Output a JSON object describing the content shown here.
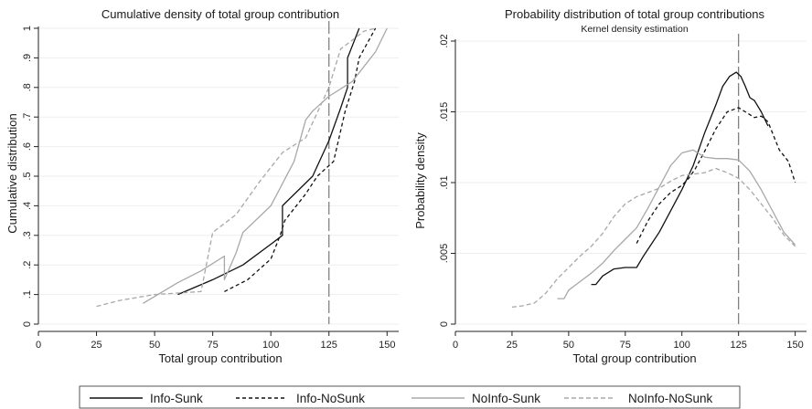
{
  "chart_data": [
    {
      "type": "line",
      "title": "Cumulative density of total group contribution",
      "xlabel": "Total group contribution",
      "ylabel": "Cumulative distribution",
      "xlim": [
        0,
        155
      ],
      "ylim": [
        0,
        1
      ],
      "xticks": [
        "0",
        "25",
        "50",
        "75",
        "100",
        "125",
        "150"
      ],
      "yticks": [
        "0",
        ".1",
        ".2",
        ".3",
        ".4",
        ".5",
        ".6",
        ".7",
        ".8",
        ".9",
        "1"
      ],
      "grid": true,
      "reference_line_x": 125,
      "series": [
        {
          "name": "Info-Sunk",
          "x": [
            60,
            75,
            88,
            100,
            105,
            105,
            118,
            125,
            130,
            133,
            133,
            138
          ],
          "y": [
            0.1,
            0.15,
            0.2,
            0.27,
            0.3,
            0.4,
            0.5,
            0.62,
            0.73,
            0.8,
            0.9,
            1.0
          ]
        },
        {
          "name": "Info-NoSunk",
          "x": [
            80,
            90,
            100,
            104,
            106,
            115,
            120,
            127,
            132,
            136,
            138,
            145
          ],
          "y": [
            0.11,
            0.15,
            0.22,
            0.3,
            0.35,
            0.44,
            0.5,
            0.55,
            0.72,
            0.82,
            0.9,
            1.0
          ]
        },
        {
          "name": "NoInfo-Sunk",
          "x": [
            45,
            60,
            70,
            80,
            80,
            85,
            88,
            100,
            110,
            115,
            118,
            125,
            135,
            145,
            150
          ],
          "y": [
            0.07,
            0.14,
            0.18,
            0.23,
            0.15,
            0.24,
            0.31,
            0.4,
            0.55,
            0.69,
            0.72,
            0.77,
            0.82,
            0.92,
            1.0
          ]
        },
        {
          "name": "NoInfo-NoSunk",
          "x": [
            25,
            35,
            50,
            70,
            75,
            85,
            95,
            105,
            115,
            125,
            130,
            135,
            140,
            145
          ],
          "y": [
            0.06,
            0.08,
            0.1,
            0.11,
            0.31,
            0.37,
            0.48,
            0.58,
            0.63,
            0.8,
            0.93,
            0.96,
            0.99,
            1.0
          ]
        }
      ]
    },
    {
      "type": "line",
      "title": "Probability distribution of total group contributions",
      "subtitle": "Kernel density estimation",
      "xlabel": "Total group contribution",
      "ylabel": "Probability density",
      "xlim": [
        0,
        155
      ],
      "ylim": [
        0,
        0.02
      ],
      "xticks": [
        "0",
        "25",
        "50",
        "75",
        "100",
        "125",
        "150"
      ],
      "yticks": [
        "0",
        ".005",
        ".01",
        ".015",
        ".02"
      ],
      "grid": true,
      "reference_line_x": 125,
      "series": [
        {
          "name": "Info-Sunk",
          "x": [
            60,
            62,
            65,
            70,
            75,
            80,
            83,
            90,
            100,
            105,
            110,
            115,
            118,
            121,
            124,
            126,
            128,
            130,
            132,
            135,
            138
          ],
          "y": [
            0.0028,
            0.0028,
            0.0034,
            0.0039,
            0.004,
            0.004,
            0.0048,
            0.0065,
            0.0095,
            0.0112,
            0.0135,
            0.0155,
            0.0168,
            0.0175,
            0.0178,
            0.0175,
            0.0168,
            0.016,
            0.0158,
            0.015,
            0.014
          ]
        },
        {
          "name": "Info-NoSunk",
          "x": [
            80,
            85,
            90,
            95,
            100,
            103,
            106,
            110,
            115,
            120,
            125,
            128,
            132,
            135,
            138,
            140,
            143,
            147,
            150
          ],
          "y": [
            0.0057,
            0.0073,
            0.0085,
            0.0093,
            0.0098,
            0.0103,
            0.011,
            0.0122,
            0.0138,
            0.015,
            0.0153,
            0.015,
            0.0146,
            0.0147,
            0.0143,
            0.0135,
            0.0123,
            0.0115,
            0.01
          ]
        },
        {
          "name": "NoInfo-Sunk",
          "x": [
            45,
            48,
            50,
            55,
            60,
            65,
            70,
            75,
            80,
            85,
            90,
            95,
            100,
            105,
            110,
            115,
            120,
            125,
            130,
            135,
            140,
            145,
            150
          ],
          "y": [
            0.0018,
            0.0018,
            0.0024,
            0.003,
            0.0036,
            0.0043,
            0.0052,
            0.006,
            0.0068,
            0.0082,
            0.0097,
            0.0112,
            0.0121,
            0.0123,
            0.0118,
            0.0117,
            0.0117,
            0.0116,
            0.0108,
            0.0095,
            0.008,
            0.0065,
            0.0056
          ]
        },
        {
          "name": "NoInfo-NoSunk",
          "x": [
            25,
            30,
            35,
            40,
            45,
            50,
            55,
            60,
            65,
            70,
            75,
            80,
            85,
            90,
            95,
            100,
            105,
            110,
            115,
            120,
            125,
            130,
            135,
            140,
            145,
            150
          ],
          "y": [
            0.0012,
            0.0013,
            0.0015,
            0.0022,
            0.0032,
            0.004,
            0.0048,
            0.0055,
            0.0064,
            0.0076,
            0.0085,
            0.009,
            0.0093,
            0.0096,
            0.0101,
            0.0105,
            0.0106,
            0.0107,
            0.011,
            0.0107,
            0.0103,
            0.0095,
            0.0085,
            0.0075,
            0.0063,
            0.0055
          ]
        }
      ]
    }
  ],
  "legend": {
    "placement": "bottom",
    "entries": [
      "Info-Sunk",
      "Info-NoSunk",
      "NoInfo-Sunk",
      "NoInfo-NoSunk"
    ]
  },
  "styles": {
    "Info-Sunk": {
      "color": "#111111",
      "dash": ""
    },
    "Info-NoSunk": {
      "color": "#111111",
      "dash": "4,3"
    },
    "NoInfo-Sunk": {
      "color": "#a8a8a8",
      "dash": ""
    },
    "NoInfo-NoSunk": {
      "color": "#a8a8a8",
      "dash": "5,3"
    },
    "grid_color": "#eeeeee",
    "refline_color": "#777777",
    "axis_color": "#222222"
  }
}
